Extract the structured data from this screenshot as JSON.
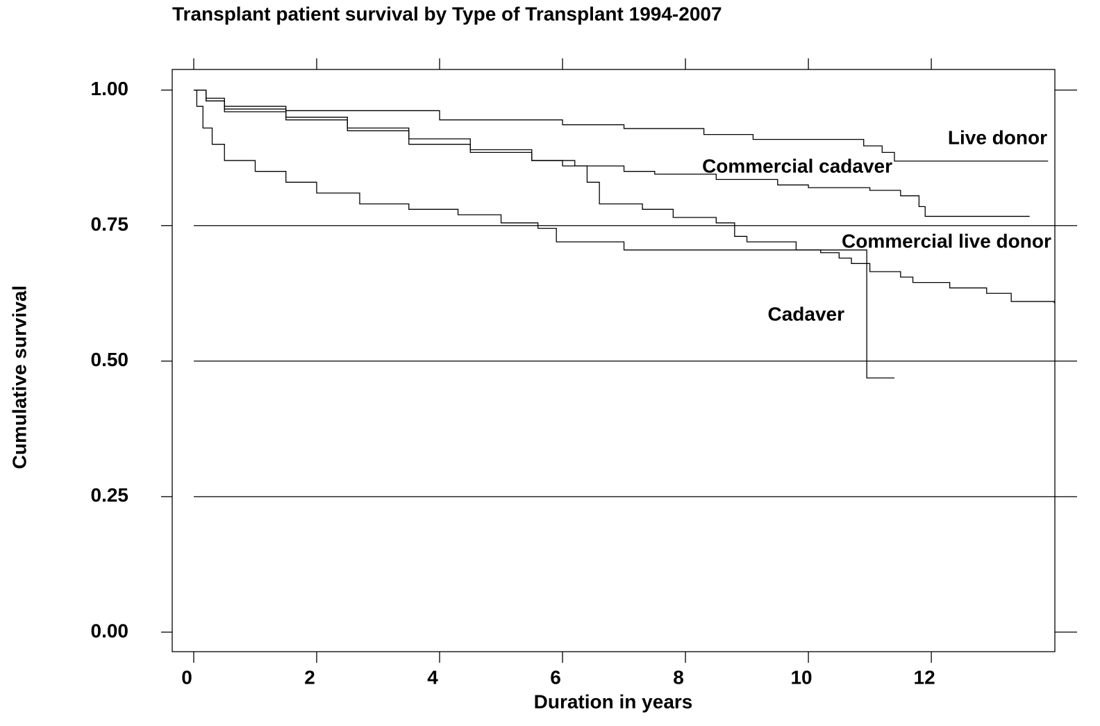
{
  "chart_data": {
    "type": "line",
    "step": "post",
    "title": "Transplant patient survival by Type of Transplant 1994-2007",
    "xlabel": "Duration in years",
    "ylabel": "Cumulative survival",
    "xlim": [
      -0.35,
      14.01
    ],
    "ylim": [
      -0.036,
      1.038
    ],
    "xticks": [
      0,
      2,
      4,
      6,
      8,
      10,
      12
    ],
    "yticks": [
      {
        "value": 0,
        "label": "0.00"
      },
      {
        "value": 0.25,
        "label": "0.25"
      },
      {
        "value": 0.5,
        "label": "0.50"
      },
      {
        "value": 0.75,
        "label": "0.75"
      },
      {
        "value": 1,
        "label": "1.00"
      }
    ],
    "hlines": [
      0.25,
      0.5,
      0.75
    ],
    "series": [
      {
        "name": "Live donor",
        "color": "#000000",
        "x": [
          0,
          0.2,
          0.5,
          1.5,
          4,
          6,
          7,
          8.3,
          9.1,
          10.9,
          11.2,
          11.4,
          13.9
        ],
        "values": [
          1,
          0.985,
          0.97,
          0.962,
          0.945,
          0.936,
          0.929,
          0.918,
          0.909,
          0.897,
          0.885,
          0.869,
          0.869
        ]
      },
      {
        "name": "Commercial cadaver",
        "color": "#000000",
        "x": [
          0,
          0.2,
          0.5,
          1.5,
          2.5,
          3.5,
          4.5,
          5.5,
          6.2,
          7,
          7.5,
          8.5,
          9.5,
          10,
          11,
          11.5,
          11.8,
          11.9,
          13.6
        ],
        "values": [
          1,
          0.98,
          0.96,
          0.95,
          0.93,
          0.91,
          0.89,
          0.87,
          0.86,
          0.85,
          0.845,
          0.835,
          0.825,
          0.82,
          0.815,
          0.805,
          0.785,
          0.767,
          0.767
        ]
      },
      {
        "name": "Commercial live donor",
        "color": "#000000",
        "x": [
          0,
          0.05,
          0.15,
          0.3,
          0.5,
          1,
          1.5,
          2,
          2.7,
          3.5,
          4.3,
          5,
          5.6,
          5.9,
          7,
          10.95,
          11.4
        ],
        "values": [
          1,
          0.97,
          0.93,
          0.9,
          0.87,
          0.85,
          0.83,
          0.81,
          0.79,
          0.78,
          0.77,
          0.755,
          0.745,
          0.72,
          0.705,
          0.469,
          0.469
        ]
      },
      {
        "name": "Cadaver",
        "color": "#000000",
        "x": [
          0,
          0.2,
          0.5,
          1.5,
          2.5,
          3.5,
          4.5,
          5.5,
          6,
          6.4,
          6.6,
          7.3,
          7.8,
          8.5,
          8.8,
          9,
          9.8,
          10.2,
          10.5,
          10.7,
          11,
          11.5,
          11.7,
          12.3,
          12.9,
          13.3,
          14
        ],
        "values": [
          1,
          0.98,
          0.965,
          0.945,
          0.925,
          0.9,
          0.885,
          0.87,
          0.86,
          0.83,
          0.79,
          0.78,
          0.765,
          0.755,
          0.73,
          0.72,
          0.705,
          0.7,
          0.69,
          0.68,
          0.665,
          0.655,
          0.645,
          0.635,
          0.625,
          0.61,
          0.607
        ]
      }
    ]
  }
}
